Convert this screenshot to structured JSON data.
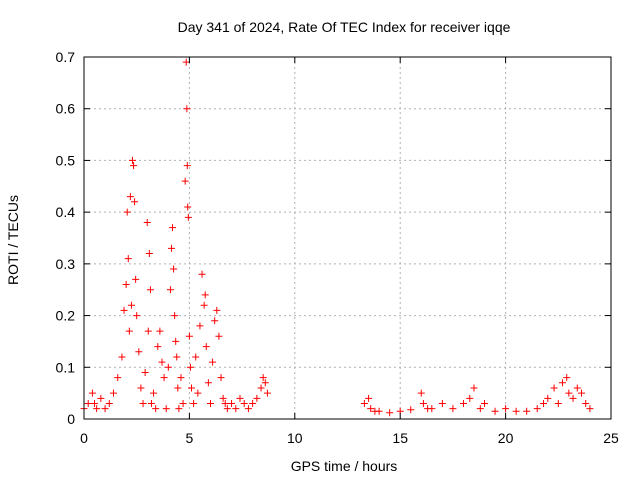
{
  "chart_data": {
    "type": "scatter",
    "title": "Day 341 of 2024, Rate Of TEC Index for receiver iqqe",
    "xlabel": "GPS time / hours",
    "ylabel": "ROTI / TECUs",
    "xlim": [
      0,
      25
    ],
    "ylim": [
      0,
      0.7
    ],
    "xticks": [
      0,
      5,
      10,
      15,
      20,
      25
    ],
    "yticks": [
      0,
      0.1,
      0.2,
      0.3,
      0.4,
      0.5,
      0.6,
      0.7
    ],
    "xtick_labels": [
      "0",
      "5",
      "10",
      "15",
      "20",
      "25"
    ],
    "ytick_labels": [
      "0",
      "0.1",
      "0.2",
      "0.3",
      "0.4",
      "0.5",
      "0.6",
      "0.7"
    ],
    "grid": true,
    "marker": "+",
    "color": "#ff0000",
    "series": [
      {
        "x": [
          0.0,
          0.2,
          0.4,
          0.5,
          0.6,
          0.8,
          1.0,
          1.2,
          1.4,
          1.6,
          1.8,
          1.9,
          2.0,
          2.05,
          2.1,
          2.15,
          2.2,
          2.25,
          2.3,
          2.35,
          2.4,
          2.45,
          2.5,
          2.6,
          2.7,
          2.8,
          2.9,
          3.0,
          3.05,
          3.1,
          3.15,
          3.2,
          3.3,
          3.4,
          3.5,
          3.6,
          3.7,
          3.8,
          3.9,
          4.0,
          4.1,
          4.15,
          4.2,
          4.25,
          4.3,
          4.35,
          4.4,
          4.45,
          4.5,
          4.6,
          4.7,
          4.8,
          4.85,
          4.88,
          4.9,
          4.92,
          4.95,
          5.0,
          5.05,
          5.1,
          5.2,
          5.3,
          5.4,
          5.5,
          5.6,
          5.7,
          5.75,
          5.8,
          5.9,
          6.0,
          6.1,
          6.2,
          6.3,
          6.4,
          6.5,
          6.6,
          6.7,
          6.8,
          7.0,
          7.2,
          7.4,
          7.6,
          7.8,
          8.0,
          8.2,
          8.4,
          8.5,
          8.6,
          8.7,
          13.3,
          13.5,
          13.6,
          13.8,
          14.0,
          14.5,
          15.0,
          15.5,
          16.0,
          16.1,
          16.3,
          16.5,
          17.0,
          17.5,
          18.0,
          18.3,
          18.5,
          18.8,
          19.0,
          19.5,
          20.0,
          20.5,
          21.0,
          21.5,
          21.8,
          22.0,
          22.3,
          22.5,
          22.7,
          22.9,
          23.0,
          23.2,
          23.4,
          23.6,
          23.8,
          24.0
        ],
        "y": [
          0.02,
          0.03,
          0.05,
          0.03,
          0.02,
          0.04,
          0.02,
          0.03,
          0.05,
          0.08,
          0.12,
          0.21,
          0.26,
          0.4,
          0.31,
          0.17,
          0.43,
          0.22,
          0.5,
          0.49,
          0.42,
          0.27,
          0.2,
          0.13,
          0.06,
          0.03,
          0.09,
          0.38,
          0.17,
          0.32,
          0.25,
          0.03,
          0.05,
          0.02,
          0.14,
          0.17,
          0.11,
          0.08,
          0.02,
          0.1,
          0.25,
          0.33,
          0.37,
          0.29,
          0.2,
          0.15,
          0.12,
          0.06,
          0.02,
          0.08,
          0.03,
          0.46,
          0.69,
          0.6,
          0.49,
          0.41,
          0.39,
          0.16,
          0.1,
          0.06,
          0.03,
          0.12,
          0.05,
          0.18,
          0.28,
          0.22,
          0.24,
          0.14,
          0.07,
          0.03,
          0.11,
          0.19,
          0.21,
          0.16,
          0.08,
          0.04,
          0.03,
          0.02,
          0.03,
          0.02,
          0.04,
          0.03,
          0.02,
          0.03,
          0.04,
          0.06,
          0.08,
          0.07,
          0.05,
          0.03,
          0.04,
          0.02,
          0.015,
          0.015,
          0.012,
          0.015,
          0.018,
          0.05,
          0.03,
          0.02,
          0.02,
          0.03,
          0.02,
          0.03,
          0.04,
          0.06,
          0.02,
          0.03,
          0.015,
          0.02,
          0.015,
          0.015,
          0.02,
          0.03,
          0.04,
          0.06,
          0.03,
          0.07,
          0.08,
          0.05,
          0.04,
          0.06,
          0.05,
          0.03,
          0.02
        ]
      }
    ]
  }
}
